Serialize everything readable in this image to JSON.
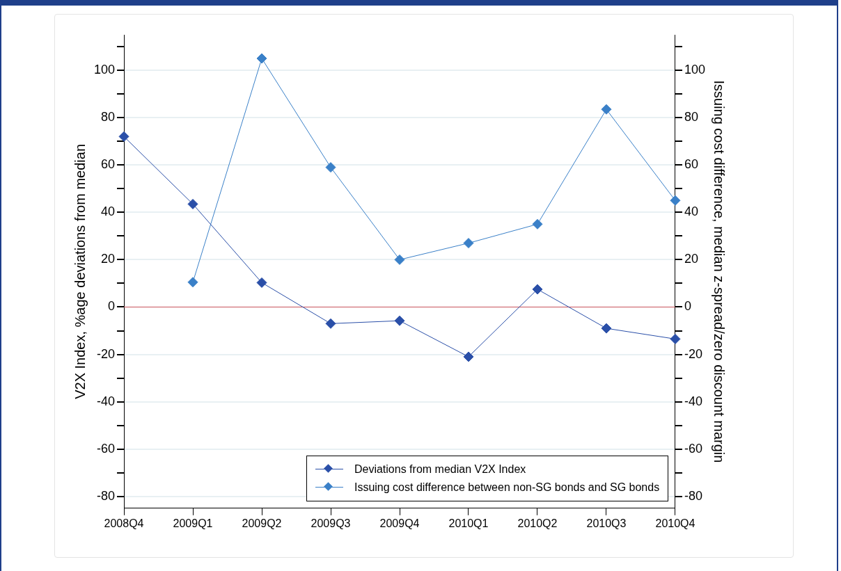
{
  "chart_data": {
    "type": "line",
    "ylabel": "V2X Index, %age deviations from median",
    "y2label": "Issuing cost difference, median z-spread/zero discount margin",
    "categories": [
      "2008Q4",
      "2009Q1",
      "2009Q2",
      "2009Q3",
      "2009Q4",
      "2010Q1",
      "2010Q2",
      "2010Q3",
      "2010Q4"
    ],
    "series": [
      {
        "name": "Deviations from median V2X Index",
        "color": "#2a4fa8",
        "values": [
          72,
          43.5,
          10.3,
          -7,
          -5.8,
          -21,
          7.5,
          -9,
          -13.5
        ]
      },
      {
        "name": "Issuing cost difference between non-SG bonds and SG bonds",
        "color": "#3a80c8",
        "axis": "y2",
        "values": [
          null,
          10.5,
          105,
          59,
          20,
          27,
          35,
          83.5,
          45
        ]
      }
    ],
    "ylim": [
      -85,
      115
    ],
    "yticks": [
      -80,
      {
        "value": -70,
        "label": null
      },
      -60,
      {
        "value": -50,
        "label": null
      },
      -40,
      {
        "value": -30,
        "label": null
      },
      -20,
      {
        "value": -10,
        "label": null
      },
      0,
      {
        "value": 10,
        "label": null
      },
      20,
      {
        "value": 30,
        "label": null
      },
      40,
      {
        "value": 50,
        "label": null
      },
      60,
      {
        "value": 70,
        "label": null
      },
      80,
      {
        "value": 90,
        "label": null
      },
      100,
      {
        "value": 110,
        "label": null
      }
    ],
    "y2lim": [
      -85,
      115
    ],
    "y2ticks": [
      -80,
      {
        "value": -70,
        "label": null
      },
      -60,
      {
        "value": -50,
        "label": null
      },
      -40,
      {
        "value": -30,
        "label": null
      },
      -20,
      {
        "value": -10,
        "label": null
      },
      0,
      {
        "value": 10,
        "label": null
      },
      20,
      {
        "value": 30,
        "label": null
      },
      40,
      {
        "value": 50,
        "label": null
      },
      60,
      {
        "value": 70,
        "label": null
      },
      80,
      {
        "value": 90,
        "label": null
      },
      100,
      {
        "value": 110,
        "label": null
      }
    ],
    "ref_lines": [
      {
        "axis": "y",
        "value": 0,
        "color": "#c8525a"
      }
    ],
    "grid": "y",
    "legend": "bottom right",
    "marker": "diamond",
    "line_style": "solid"
  }
}
